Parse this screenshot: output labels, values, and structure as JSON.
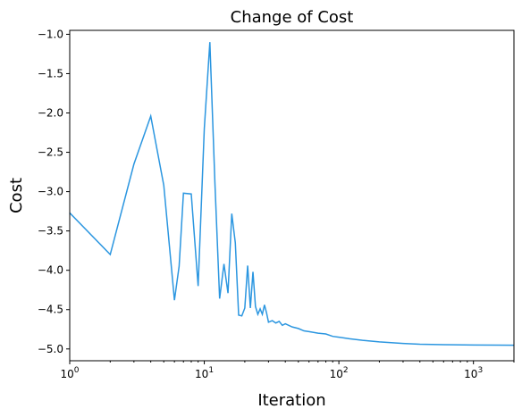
{
  "chart_data": {
    "type": "line",
    "title": "Change of Cost",
    "xlabel": "Iteration",
    "ylabel": "Cost",
    "xscale": "log",
    "xlim": [
      1,
      2000
    ],
    "ylim": [
      -5.15,
      -0.95
    ],
    "grid": false,
    "legend": "none",
    "line_color": "#2b96e0",
    "x_ticks": [
      {
        "value": 1,
        "base": "10",
        "exp": "0"
      },
      {
        "value": 10,
        "base": "10",
        "exp": "1"
      },
      {
        "value": 100,
        "base": "10",
        "exp": "2"
      },
      {
        "value": 1000,
        "base": "10",
        "exp": "3"
      }
    ],
    "y_ticks": [
      {
        "value": -1.0,
        "label": "−1.0"
      },
      {
        "value": -1.5,
        "label": "−1.5"
      },
      {
        "value": -2.0,
        "label": "−2.0"
      },
      {
        "value": -2.5,
        "label": "−2.5"
      },
      {
        "value": -3.0,
        "label": "−3.0"
      },
      {
        "value": -3.5,
        "label": "−3.5"
      },
      {
        "value": -4.0,
        "label": "−4.0"
      },
      {
        "value": -4.5,
        "label": "−4.5"
      },
      {
        "value": -5.0,
        "label": "−5.0"
      }
    ],
    "series": [
      {
        "x": [
          1,
          2,
          3,
          4,
          5,
          6,
          6.5,
          7,
          8,
          9,
          10,
          11,
          12,
          13,
          14,
          15,
          16,
          17,
          18,
          19,
          20,
          21,
          22,
          23,
          24,
          25,
          26,
          27,
          28,
          29,
          30,
          32,
          34,
          36,
          38,
          40,
          45,
          50,
          55,
          60,
          70,
          80,
          90,
          100,
          120,
          150,
          200,
          300,
          400,
          600,
          1000,
          1500,
          2000
        ],
        "y": [
          -3.27,
          -3.8,
          -2.65,
          -2.04,
          -2.92,
          -4.38,
          -3.95,
          -3.02,
          -3.03,
          -4.2,
          -2.2,
          -1.1,
          -2.9,
          -4.36,
          -3.92,
          -4.29,
          -3.28,
          -3.65,
          -4.57,
          -4.58,
          -4.48,
          -3.94,
          -4.48,
          -4.02,
          -4.46,
          -4.56,
          -4.49,
          -4.56,
          -4.44,
          -4.54,
          -4.66,
          -4.64,
          -4.67,
          -4.65,
          -4.7,
          -4.68,
          -4.72,
          -4.74,
          -4.77,
          -4.78,
          -4.8,
          -4.81,
          -4.84,
          -4.85,
          -4.87,
          -4.89,
          -4.91,
          -4.93,
          -4.94,
          -4.945,
          -4.95,
          -4.952,
          -4.953
        ]
      }
    ]
  }
}
